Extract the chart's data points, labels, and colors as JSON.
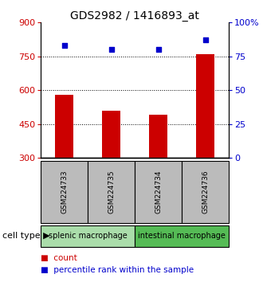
{
  "title": "GDS2982 / 1416893_at",
  "samples": [
    "GSM224733",
    "GSM224735",
    "GSM224734",
    "GSM224736"
  ],
  "counts": [
    580,
    510,
    490,
    760
  ],
  "percentiles": [
    83,
    80,
    80,
    87
  ],
  "ylim_left": [
    300,
    900
  ],
  "ylim_right": [
    0,
    100
  ],
  "yticks_left": [
    300,
    450,
    600,
    750,
    900
  ],
  "yticks_right": [
    0,
    25,
    50,
    75,
    100
  ],
  "ytick_right_labels": [
    "0",
    "25",
    "50",
    "75",
    "100%"
  ],
  "bar_color": "#cc0000",
  "dot_color": "#0000cc",
  "groups": [
    {
      "label": "splenic macrophage",
      "color": "#aaddaa",
      "indices": [
        0,
        1
      ]
    },
    {
      "label": "intestinal macrophage",
      "color": "#55bb55",
      "indices": [
        2,
        3
      ]
    }
  ],
  "group_label_text": "cell type",
  "group_arrow": "▶",
  "legend_count_label": "count",
  "legend_percentile_label": "percentile rank within the sample",
  "sample_bg_color": "#bbbbbb",
  "title_fontsize": 10,
  "tick_fontsize": 8,
  "bar_width": 0.4
}
